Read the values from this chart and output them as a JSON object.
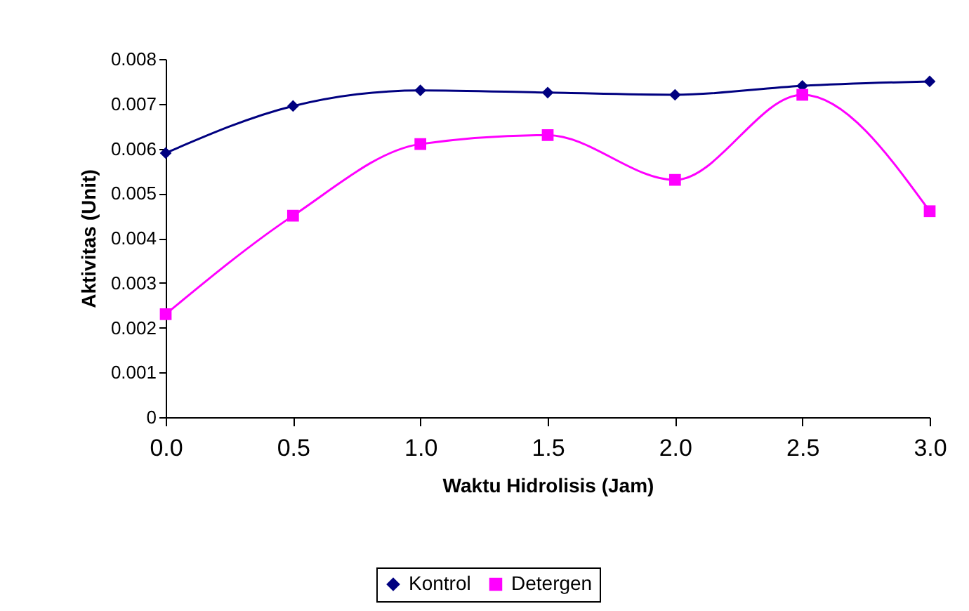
{
  "chart_data": {
    "type": "line",
    "xlabel": "Waktu Hidrolisis (Jam)",
    "ylabel": "Aktivitas (Unit)",
    "x": [
      0,
      0.5,
      1,
      1.5,
      2,
      2.5,
      3
    ],
    "series": [
      {
        "name": "Kontrol",
        "color": "#000080",
        "marker": "diamond",
        "values": [
          0.0059,
          0.00695,
          0.0073,
          0.00725,
          0.0072,
          0.0074,
          0.0075
        ]
      },
      {
        "name": "Detergen",
        "color": "#ff00ff",
        "marker": "square",
        "values": [
          0.0023,
          0.0045,
          0.0061,
          0.0063,
          0.0053,
          0.0072,
          0.0046
        ]
      }
    ],
    "xlim": [
      0,
      3
    ],
    "xticks": [
      {
        "value": 0,
        "label": "0.0"
      },
      {
        "value": 0.5,
        "label": "0.5"
      },
      {
        "value": 1,
        "label": "1.0"
      },
      {
        "value": 1.5,
        "label": "1.5"
      },
      {
        "value": 2,
        "label": "2.0"
      },
      {
        "value": 2.5,
        "label": "2.5"
      },
      {
        "value": 3,
        "label": "3.0"
      }
    ],
    "ylim": [
      0,
      0.008
    ],
    "yticks": [
      0,
      0.001,
      0.002,
      0.003,
      0.004,
      0.005,
      0.006,
      0.007,
      0.008
    ],
    "grid": false,
    "legend": "bottom",
    "line_style": "solid"
  }
}
